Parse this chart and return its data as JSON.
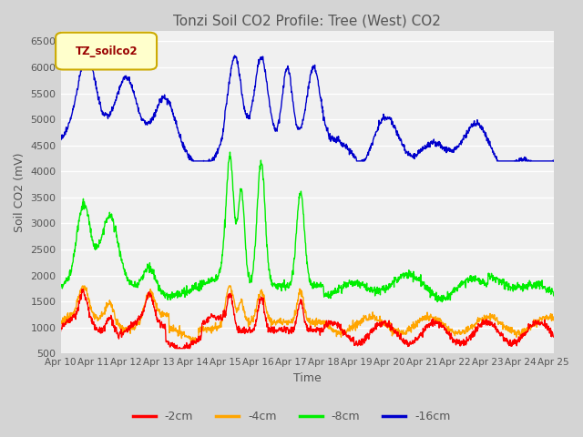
{
  "title": "Tonzi Soil CO2 Profile: Tree (West) CO2",
  "xlabel": "Time",
  "ylabel": "Soil CO2 (mV)",
  "legend_label": "TZ_soilco2",
  "ylim": [
    500,
    6700
  ],
  "yticks": [
    500,
    1000,
    1500,
    2000,
    2500,
    3000,
    3500,
    4000,
    4500,
    5000,
    5500,
    6000,
    6500
  ],
  "xtick_labels": [
    "Apr 10",
    "Apr 11",
    "Apr 12",
    "Apr 13",
    "Apr 14",
    "Apr 15",
    "Apr 16",
    "Apr 17",
    "Apr 18",
    "Apr 19",
    "Apr 20",
    "Apr 21",
    "Apr 22",
    "Apr 23",
    "Apr 24",
    "Apr 25"
  ],
  "series_colors": {
    "-2cm": "#ff0000",
    "-4cm": "#ffa500",
    "-8cm": "#00ee00",
    "-16cm": "#0000cc"
  },
  "background_color": "#ebebeb",
  "plot_bg_color": "#f0f0f0",
  "grid_color": "#ffffff",
  "title_color": "#555555",
  "axis_label_color": "#555555",
  "tick_label_color": "#555555",
  "legend_box_color": "#ffffcc",
  "legend_box_edge": "#ccaa00",
  "legend_text_color": "#990000"
}
